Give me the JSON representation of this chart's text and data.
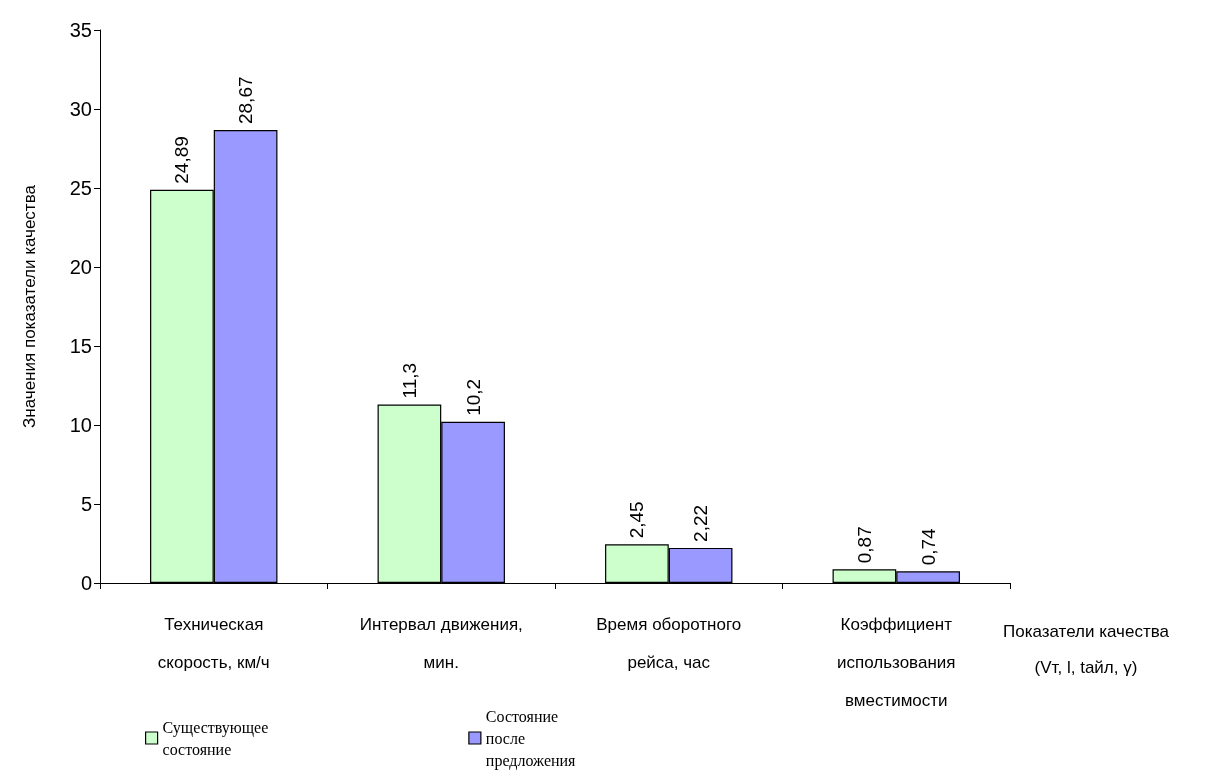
{
  "chart_data": {
    "type": "bar",
    "xlabel": "Показатели качества (Vт, l, tайл, γ)",
    "ylabel": "Значения показатели качества",
    "categories": [
      "Техническая скорость, км/ч",
      "Интервал движения, мин.",
      "Время оборотного рейса, час",
      "Коэффициент использования вместимости"
    ],
    "series": [
      {
        "name": "Существующее состояние",
        "color": "#ccffcc",
        "values": [
          24.89,
          11.3,
          2.45,
          0.87
        ],
        "value_labels": [
          "24,89",
          "11,3",
          "2,45",
          "0,87"
        ]
      },
      {
        "name": "Состояние после предложения",
        "color": "#9999ff",
        "values": [
          28.67,
          10.2,
          2.22,
          0.74
        ],
        "value_labels": [
          "28,67",
          "10,2",
          "2,22",
          "0,74"
        ]
      }
    ],
    "ylim": [
      0,
      35
    ],
    "yticks": [
      0,
      5,
      10,
      15,
      20,
      25,
      30,
      35
    ],
    "grid": false,
    "legend": "bottom left"
  }
}
